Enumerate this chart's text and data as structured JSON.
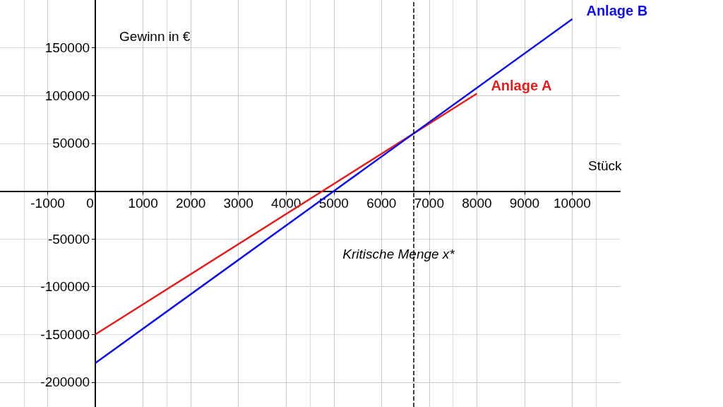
{
  "chart_data": {
    "type": "line",
    "xlabel": "Stück",
    "ylabel": "Gewinn in €",
    "xlim": [
      -2000,
      11000
    ],
    "xticks": [
      -1000,
      0,
      1000,
      2000,
      3000,
      4000,
      5000,
      6000,
      7000,
      8000,
      9000,
      10000
    ],
    "ylim": [
      -226000,
      200000
    ],
    "yticks": [
      -200000,
      -150000,
      -100000,
      -50000,
      {
        "value": 0,
        "label": null
      },
      50000,
      100000,
      150000
    ],
    "series": [
      {
        "name": "Anlage A",
        "color": "#e02020",
        "x": [
          0,
          8000
        ],
        "values": [
          -150000,
          102000
        ]
      },
      {
        "name": "Anlage B",
        "color": "#1010e0",
        "x": [
          0,
          10000
        ],
        "values": [
          -180000,
          180000
        ]
      }
    ],
    "ref_lines": [
      {
        "axis": "x",
        "value": 6667,
        "label": "Kritische Menge x*",
        "line_style": "dashed",
        "color": "#000000"
      }
    ],
    "grid": true,
    "marker": "none",
    "line_style": "solid",
    "legend": false
  }
}
